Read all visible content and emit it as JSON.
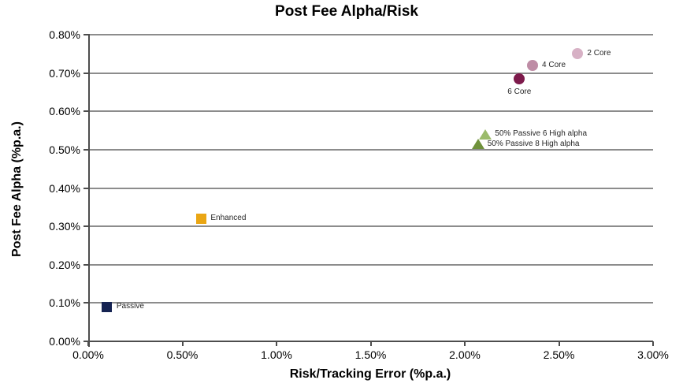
{
  "chart_data": {
    "type": "scatter",
    "title": "Post Fee Alpha/Risk",
    "xlabel": "Risk/Tracking Error (%p.a.)",
    "ylabel": "Post Fee Alpha (%p.a.)",
    "xlim": [
      0.0,
      3.0
    ],
    "ylim": [
      0.0,
      0.8
    ],
    "grid": "horizontal-only",
    "legend": "none (inline point labels)",
    "colors": {
      "gridline": "#8c8c8c",
      "axis": "#4d4d4d",
      "text": "#000000"
    },
    "x_ticks": [
      {
        "label": "0.00%",
        "value": 0.0
      },
      {
        "label": "0.50%",
        "value": 0.5
      },
      {
        "label": "1.00%",
        "value": 1.0
      },
      {
        "label": "1.50%",
        "value": 1.5
      },
      {
        "label": "2.00%",
        "value": 2.0
      },
      {
        "label": "2.50%",
        "value": 2.5
      },
      {
        "label": "3.00%",
        "value": 3.0
      }
    ],
    "y_ticks": [
      {
        "label": "0.00%",
        "value": 0.0
      },
      {
        "label": "0.10%",
        "value": 0.1
      },
      {
        "label": "0.20%",
        "value": 0.2
      },
      {
        "label": "0.30%",
        "value": 0.3
      },
      {
        "label": "0.40%",
        "value": 0.4
      },
      {
        "label": "0.50%",
        "value": 0.5
      },
      {
        "label": "0.60%",
        "value": 0.6
      },
      {
        "label": "0.70%",
        "value": 0.7
      },
      {
        "label": "0.80%",
        "value": 0.8
      }
    ],
    "points": [
      {
        "label": "Passive",
        "x": 0.1,
        "y": 0.09,
        "shape": "square",
        "color": "#152352",
        "label_position": "right"
      },
      {
        "label": "Enhanced",
        "x": 0.6,
        "y": 0.32,
        "shape": "square",
        "color": "#eaa614",
        "label_position": "right"
      },
      {
        "label": "50% Passive 8 High alpha",
        "x": 2.07,
        "y": 0.515,
        "shape": "triangle",
        "color": "#6f913b",
        "label_position": "right"
      },
      {
        "label": "50% Passive 6 High alpha",
        "x": 2.11,
        "y": 0.54,
        "shape": "triangle",
        "color": "#9bbb6b",
        "label_position": "right"
      },
      {
        "label": "6 Core",
        "x": 2.29,
        "y": 0.685,
        "shape": "circle",
        "color": "#7d1a4b",
        "label_position": "below"
      },
      {
        "label": "4 Core",
        "x": 2.36,
        "y": 0.72,
        "shape": "circle",
        "color": "#be8ca5",
        "label_position": "right"
      },
      {
        "label": "2 Core",
        "x": 2.6,
        "y": 0.75,
        "shape": "circle",
        "color": "#d7b1c5",
        "label_position": "right"
      }
    ]
  }
}
